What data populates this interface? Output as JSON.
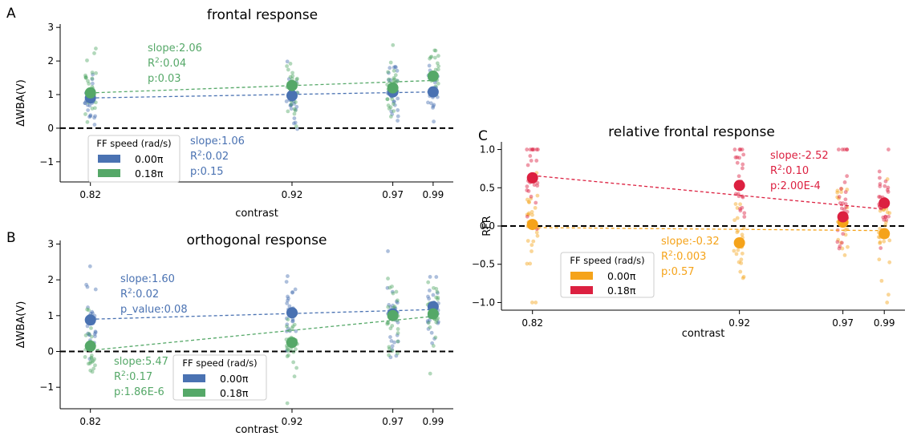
{
  "colors": {
    "blue": "#4a72b2",
    "green": "#55a868",
    "orange": "#f5a31a",
    "red": "#dc2040"
  },
  "chart_data": [
    {
      "panel": "A",
      "type": "scatter",
      "title": "frontal response",
      "xlabel": "contrast",
      "ylabel": "ΔWBA(V)",
      "x_ticks": [
        "0.82",
        "0.92",
        "0.97",
        "0.99"
      ],
      "x_values": [
        0.82,
        0.92,
        0.97,
        0.99
      ],
      "xlim": [
        0.805,
        1.0
      ],
      "ylim": [
        -1.6,
        3.1
      ],
      "y_ticks": [
        -1,
        0,
        1,
        2,
        3
      ],
      "zero_line": "dashed black",
      "legend": {
        "title": "FF speed (rad/s)",
        "entries": [
          "0.00π",
          "0.18π"
        ],
        "placement": "lower-left"
      },
      "series": [
        {
          "name": "0.00π",
          "color": "blue",
          "means": [
            0.9,
            0.97,
            1.08,
            1.08
          ],
          "fit": [
            0.9,
            1.08
          ],
          "stats": [
            "slope:1.06",
            "R²:0.02",
            "p:0.15"
          ]
        },
        {
          "name": "0.18π",
          "color": "green",
          "means": [
            1.05,
            1.27,
            1.2,
            1.55
          ],
          "fit": [
            1.05,
            1.42
          ],
          "stats": [
            "slope:2.06",
            "R²:0.04",
            "p:0.03"
          ]
        }
      ]
    },
    {
      "panel": "B",
      "type": "scatter",
      "title": "orthogonal response",
      "xlabel": "contrast",
      "ylabel": "ΔWBA(V)",
      "x_ticks": [
        "0.82",
        "0.92",
        "0.97",
        "0.99"
      ],
      "x_values": [
        0.82,
        0.92,
        0.97,
        0.99
      ],
      "xlim": [
        0.805,
        1.0
      ],
      "ylim": [
        -1.6,
        3.1
      ],
      "y_ticks": [
        -1,
        0,
        1,
        2,
        3
      ],
      "zero_line": "dashed black",
      "legend": {
        "title": "FF speed (rad/s)",
        "entries": [
          "0.00π",
          "0.18π"
        ],
        "placement": "lower-center"
      },
      "series": [
        {
          "name": "0.00π",
          "color": "blue",
          "means": [
            0.88,
            1.08,
            1.05,
            1.25
          ],
          "fit": [
            0.9,
            1.17
          ],
          "stats": [
            "slope:1.60",
            "R²:0.02",
            "p_value:0.08"
          ]
        },
        {
          "name": "0.18π",
          "color": "green",
          "means": [
            0.15,
            0.25,
            1.0,
            1.05
          ],
          "fit": [
            0.03,
            0.98
          ],
          "stats": [
            "slope:5.47",
            "R²:0.17",
            "p:1.86E-6"
          ]
        }
      ]
    },
    {
      "panel": "C",
      "type": "scatter",
      "title": "relative frontal response",
      "xlabel": "contrast",
      "ylabel": "RFR",
      "x_ticks": [
        "0.82",
        "0.92",
        "0.97",
        "0.99"
      ],
      "x_values": [
        0.82,
        0.92,
        0.97,
        0.99
      ],
      "xlim": [
        0.805,
        1.0
      ],
      "ylim": [
        -1.1,
        1.1
      ],
      "y_ticks": [
        -1.0,
        -0.5,
        0.0,
        0.5,
        1.0
      ],
      "y_tick_labels": [
        "−1.0",
        "−0.5",
        "0.0",
        "0.5",
        "1.0"
      ],
      "zero_line": "dashed black",
      "legend": {
        "title": "FF speed (rad/s)",
        "entries": [
          "0.00π",
          "0.18π"
        ],
        "placement": "lower-left"
      },
      "series": [
        {
          "name": "0.00π",
          "color": "orange",
          "means": [
            0.02,
            -0.22,
            0.05,
            -0.1
          ],
          "fit": [
            -0.02,
            -0.06
          ],
          "stats": [
            "slope:-0.32",
            "R²:0.003",
            "p:0.57"
          ]
        },
        {
          "name": "0.18π",
          "color": "red",
          "means": [
            0.63,
            0.53,
            0.12,
            0.3
          ],
          "fit": [
            0.66,
            0.22
          ],
          "stats": [
            "slope:-2.52",
            "R²:0.10",
            "p:2.00E-4"
          ]
        }
      ]
    }
  ]
}
